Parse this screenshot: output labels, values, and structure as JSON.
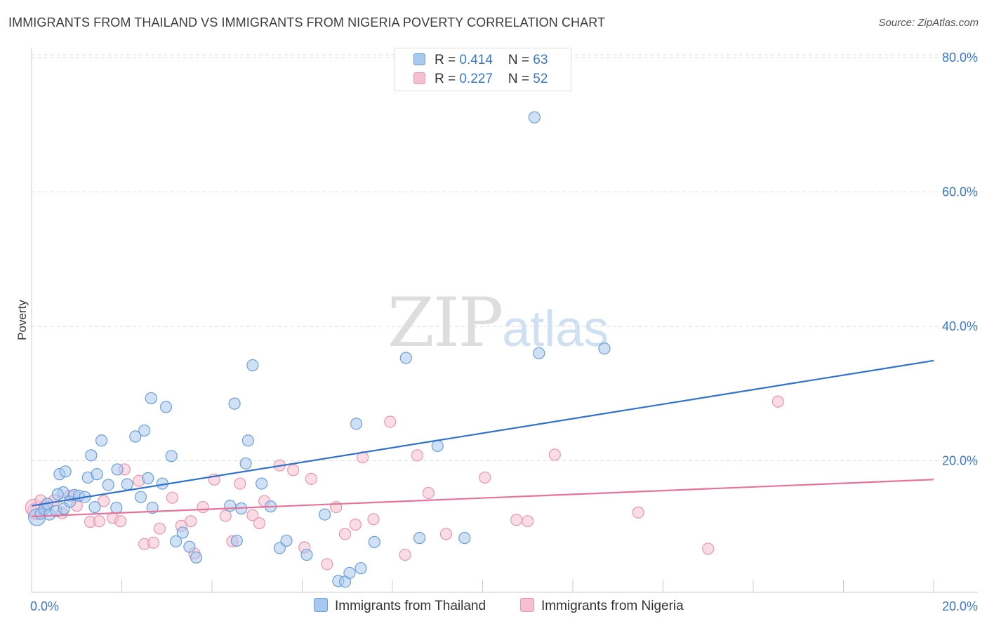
{
  "title": "IMMIGRANTS FROM THAILAND VS IMMIGRANTS FROM NIGERIA POVERTY CORRELATION CHART",
  "source": "Source: ZipAtlas.com",
  "watermark": {
    "part_a": "ZIP",
    "part_b": "atlas"
  },
  "colors": {
    "thailand_fill": "#a9c8ef",
    "thailand_stroke": "#6a9fd8",
    "thailand_line": "#2f72d0",
    "nigeria_fill": "#f6bfd0",
    "nigeria_stroke": "#ea95b1",
    "nigeria_line": "#e8729a",
    "axis_label": "#3a78c9",
    "grid": "#dedede"
  },
  "legend_top": {
    "thailand": {
      "r_label": "R = ",
      "r_value": "0.414",
      "n_label": "N = ",
      "n_value": "63"
    },
    "nigeria": {
      "r_label": "R = ",
      "r_value": "0.227",
      "n_label": "N = ",
      "n_value": "52"
    }
  },
  "chart_data": {
    "type": "scatter",
    "title": "IMMIGRANTS FROM THAILAND VS IMMIGRANTS FROM NIGERIA POVERTY CORRELATION CHART",
    "xlabel": "",
    "ylabel": "Poverty",
    "xlim": [
      0,
      20
    ],
    "ylim": [
      0,
      80
    ],
    "x_tick_labels": [
      "0.0%",
      "20.0%"
    ],
    "y_ticks": [
      20,
      40,
      60,
      80
    ],
    "y_tick_labels": [
      "20.0%",
      "40.0%",
      "60.0%",
      "80.0%"
    ],
    "grid": true,
    "legend_position": "top-center",
    "series": [
      {
        "name": "Immigrants from Thailand",
        "r": 0.414,
        "n": 63,
        "trend": {
          "x": [
            0,
            20
          ],
          "y": [
            13.3,
            34.9
          ]
        },
        "points": [
          [
            0.12,
            11.6
          ],
          [
            0.2,
            12.1
          ],
          [
            0.28,
            12.8
          ],
          [
            0.4,
            12.0
          ],
          [
            0.35,
            13.6
          ],
          [
            0.55,
            12.5
          ],
          [
            0.72,
            12.9
          ],
          [
            0.85,
            13.9
          ],
          [
            0.95,
            14.9
          ],
          [
            1.05,
            14.8
          ],
          [
            1.18,
            14.6
          ],
          [
            1.4,
            13.1
          ],
          [
            1.7,
            16.4
          ],
          [
            0.7,
            15.3
          ],
          [
            1.25,
            17.5
          ],
          [
            1.45,
            18.0
          ],
          [
            1.88,
            13.0
          ],
          [
            0.58,
            15.0
          ],
          [
            0.62,
            18.0
          ],
          [
            0.75,
            18.4
          ],
          [
            1.32,
            20.8
          ],
          [
            1.55,
            23.0
          ],
          [
            1.9,
            18.7
          ],
          [
            2.12,
            16.5
          ],
          [
            2.42,
            14.6
          ],
          [
            2.58,
            17.4
          ],
          [
            2.9,
            16.6
          ],
          [
            2.68,
            13.0
          ],
          [
            2.3,
            23.6
          ],
          [
            2.5,
            24.5
          ],
          [
            2.65,
            29.3
          ],
          [
            2.98,
            28.0
          ],
          [
            3.1,
            20.7
          ],
          [
            3.2,
            8.0
          ],
          [
            3.35,
            9.3
          ],
          [
            3.5,
            7.2
          ],
          [
            3.65,
            5.6
          ],
          [
            4.4,
            13.3
          ],
          [
            4.55,
            8.1
          ],
          [
            4.8,
            23.0
          ],
          [
            4.5,
            28.5
          ],
          [
            4.65,
            12.9
          ],
          [
            4.75,
            19.6
          ],
          [
            4.9,
            34.2
          ],
          [
            5.1,
            16.6
          ],
          [
            5.5,
            7.0
          ],
          [
            5.65,
            8.1
          ],
          [
            5.3,
            13.2
          ],
          [
            6.1,
            6.0
          ],
          [
            6.5,
            12.0
          ],
          [
            6.8,
            2.1
          ],
          [
            6.95,
            2.0
          ],
          [
            7.2,
            25.5
          ],
          [
            7.3,
            4.0
          ],
          [
            7.05,
            3.3
          ],
          [
            7.6,
            7.9
          ],
          [
            8.6,
            8.5
          ],
          [
            8.3,
            35.3
          ],
          [
            9.6,
            8.5
          ],
          [
            11.15,
            71.1
          ],
          [
            9.0,
            22.2
          ],
          [
            11.25,
            36.0
          ],
          [
            12.7,
            36.7
          ]
        ]
      },
      {
        "name": "Immigrants from Nigeria",
        "r": 0.227,
        "n": 52,
        "trend": {
          "x": [
            0,
            20
          ],
          "y": [
            11.7,
            17.2
          ]
        },
        "points": [
          [
            0.1,
            12.5
          ],
          [
            0.3,
            13.3
          ],
          [
            0.5,
            14.1
          ],
          [
            0.68,
            12.2
          ],
          [
            0.85,
            14.8
          ],
          [
            1.0,
            13.3
          ],
          [
            1.3,
            10.9
          ],
          [
            1.5,
            11.0
          ],
          [
            1.6,
            14.0
          ],
          [
            1.8,
            11.5
          ],
          [
            1.97,
            11.0
          ],
          [
            2.06,
            18.7
          ],
          [
            2.38,
            17.0
          ],
          [
            2.5,
            7.6
          ],
          [
            2.7,
            7.8
          ],
          [
            2.84,
            9.9
          ],
          [
            3.12,
            14.5
          ],
          [
            3.32,
            10.3
          ],
          [
            3.53,
            11.0
          ],
          [
            3.61,
            6.2
          ],
          [
            3.8,
            13.1
          ],
          [
            4.05,
            17.2
          ],
          [
            4.3,
            11.8
          ],
          [
            4.45,
            8.0
          ],
          [
            4.62,
            16.6
          ],
          [
            4.9,
            11.9
          ],
          [
            5.05,
            10.7
          ],
          [
            5.16,
            14.0
          ],
          [
            5.5,
            19.3
          ],
          [
            5.8,
            18.6
          ],
          [
            6.05,
            7.1
          ],
          [
            6.2,
            17.3
          ],
          [
            6.55,
            4.6
          ],
          [
            6.75,
            13.1
          ],
          [
            6.95,
            9.1
          ],
          [
            7.18,
            10.5
          ],
          [
            7.34,
            20.5
          ],
          [
            7.58,
            11.3
          ],
          [
            7.95,
            25.8
          ],
          [
            8.28,
            6.0
          ],
          [
            8.55,
            20.8
          ],
          [
            8.8,
            15.2
          ],
          [
            9.19,
            9.1
          ],
          [
            10.05,
            17.5
          ],
          [
            10.75,
            11.2
          ],
          [
            11.0,
            11.0
          ],
          [
            11.6,
            20.9
          ],
          [
            13.45,
            12.3
          ],
          [
            15.0,
            6.9
          ],
          [
            16.55,
            28.8
          ],
          [
            0.05,
            13.0
          ],
          [
            0.2,
            14.1
          ]
        ]
      }
    ]
  },
  "legend_bottom": {
    "thailand_label": "Immigrants from Thailand",
    "nigeria_label": "Immigrants from Nigeria"
  }
}
